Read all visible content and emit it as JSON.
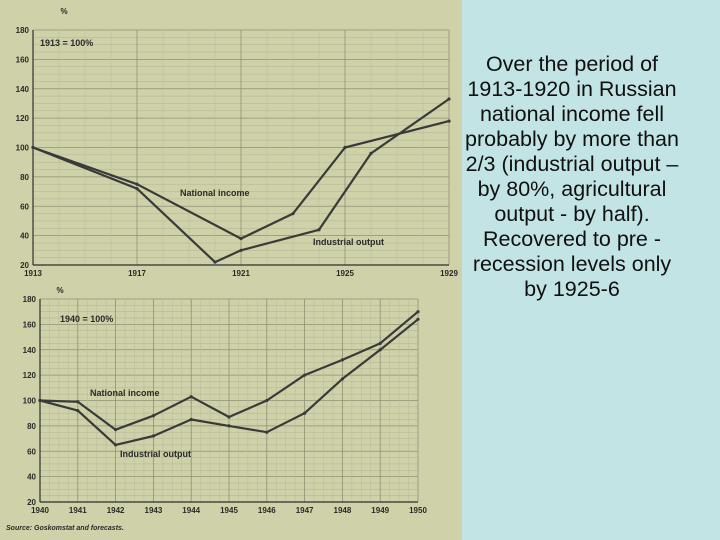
{
  "caption": "Over the period of 1913-1920 in Russian national income  fell probably by more than 2/3 (industrial output – by 80%, agricultural output - by half). Recovered to pre -recession levels only by 1925-6",
  "chart_data": [
    {
      "type": "line",
      "unit_label": "%",
      "base_label": "1913 = 100%",
      "x": [
        1913,
        1917,
        1921,
        1925,
        1929
      ],
      "ylim": [
        20,
        180
      ],
      "yticks": [
        20,
        40,
        60,
        80,
        100,
        120,
        140,
        160,
        180
      ],
      "xticks": [
        "1913",
        "1917",
        "1921",
        "1925",
        "1929"
      ],
      "series": [
        {
          "name": "National income",
          "x": [
            1913,
            1917,
            1921,
            1923,
            1925,
            1929
          ],
          "values": [
            100,
            75,
            38,
            55,
            100,
            118
          ],
          "color": "#3a3a3a"
        },
        {
          "name": "Industrial output",
          "x": [
            1913,
            1917,
            1920,
            1921,
            1924,
            1926,
            1929
          ],
          "values": [
            100,
            72,
            22,
            30,
            44,
            96,
            133
          ],
          "color": "#3a3a3a"
        }
      ],
      "grid": true
    },
    {
      "type": "line",
      "unit_label": "%",
      "base_label": "1940 = 100%",
      "x": [
        1940,
        1941,
        1942,
        1943,
        1944,
        1945,
        1946,
        1947,
        1948,
        1949,
        1950
      ],
      "ylim": [
        20,
        180
      ],
      "yticks": [
        20,
        40,
        60,
        80,
        100,
        120,
        140,
        160,
        180
      ],
      "xticks": [
        "1940",
        "1941",
        "1942",
        "1943",
        "1944",
        "1945",
        "1946",
        "1947",
        "1948",
        "1949",
        "1950"
      ],
      "series": [
        {
          "name": "National income",
          "x": [
            1940,
            1941,
            1942,
            1943,
            1944,
            1945,
            1946,
            1947,
            1948,
            1949,
            1950
          ],
          "values": [
            100,
            99,
            77,
            88,
            103,
            87,
            100,
            120,
            132,
            145,
            170
          ],
          "color": "#3a3a3a"
        },
        {
          "name": "Industrial output",
          "x": [
            1940,
            1941,
            1942,
            1943,
            1944,
            1945,
            1946,
            1947,
            1948,
            1949,
            1950
          ],
          "values": [
            100,
            92,
            65,
            72,
            85,
            80,
            75,
            90,
            117,
            140,
            164
          ],
          "color": "#3a3a3a"
        }
      ],
      "grid": true,
      "source": "Source: Goskomstat and forecasts."
    }
  ]
}
